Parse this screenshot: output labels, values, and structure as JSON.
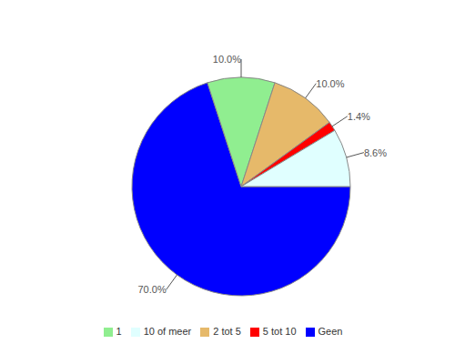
{
  "chart_data": {
    "type": "pie",
    "categories": [
      "Geen",
      "1",
      "2 tot 5",
      "5 tot 10",
      "10 of meer"
    ],
    "values": [
      70,
      10,
      10,
      1.4,
      8.6
    ],
    "value_labels": [
      "70.0%",
      "10.0%",
      "10.0%",
      "1.4%",
      "8.6%"
    ],
    "colors": [
      "#0000ff",
      "#90ee90",
      "#e6b96a",
      "#ff0000",
      "#e0ffff"
    ],
    "legend": "bottom",
    "data_labels": true
  }
}
